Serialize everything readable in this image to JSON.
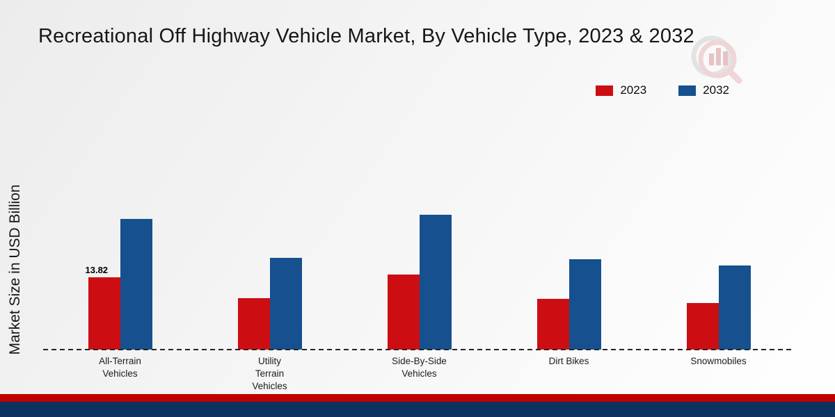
{
  "page": {
    "title": "Recreational Off Highway Vehicle Market, By Vehicle Type, 2023 & 2032",
    "ylabel": "Market Size in USD Billion"
  },
  "legend": [
    {
      "label": "2023",
      "color": "#cc0e13"
    },
    {
      "label": "2032",
      "color": "#16508e"
    }
  ],
  "chart_data": {
    "type": "bar",
    "title": "Recreational Off Highway Vehicle Market, By Vehicle Type, 2023 & 2032",
    "xlabel": "",
    "ylabel": "Market Size in USD Billion",
    "categories": [
      "All-Terrain\nVehicles",
      "Utility\nTerrain\nVehicles",
      "Side-By-Side\nVehicles",
      "Dirt Bikes",
      "Snowmobiles"
    ],
    "series": [
      {
        "name": "2023",
        "color": "#cc0e13",
        "values": [
          13.82,
          9.8,
          14.4,
          9.7,
          8.9
        ]
      },
      {
        "name": "2032",
        "color": "#16508e",
        "values": [
          25.0,
          17.6,
          25.9,
          17.3,
          16.1
        ]
      }
    ],
    "ylim": [
      0,
      30
    ],
    "grid": false,
    "legend_position": "top-right",
    "baseline_style": "dashed",
    "data_labels": [
      {
        "series_index": 0,
        "category_index": 0,
        "text": "13.82"
      }
    ]
  }
}
